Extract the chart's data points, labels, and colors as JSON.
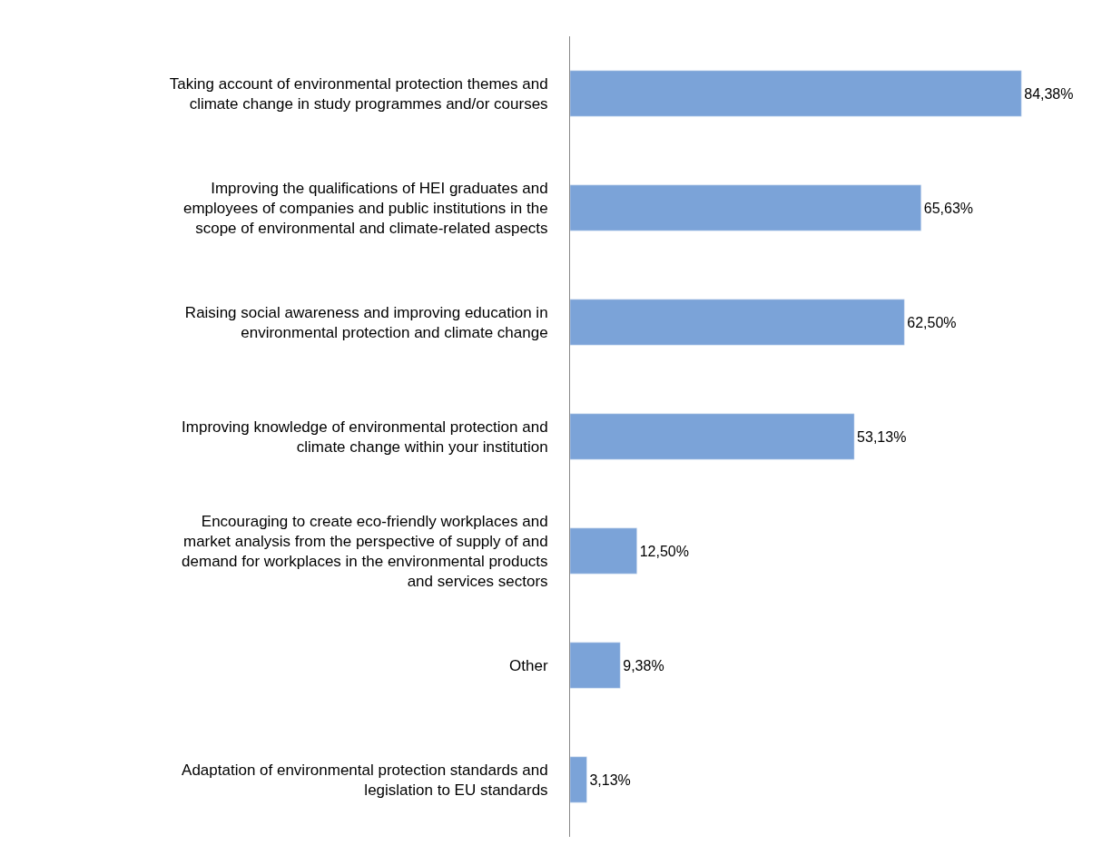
{
  "chart_data": {
    "type": "bar",
    "orientation": "horizontal",
    "categories": [
      "Taking account of environmental protection themes and climate change in study programmes and/or courses",
      "Improving the qualifications of HEI graduates and employees of companies and public institutions in the scope of environmental and climate-related aspects",
      "Raising social awareness and improving education in environmental protection and climate change",
      "Improving knowledge of environmental protection and climate change within your institution",
      "Encouraging to create eco-friendly workplaces and market analysis from the perspective of supply of and demand for workplaces in the environmental products and services sectors",
      "Other",
      "Adaptation of environmental protection standards and legislation to EU standards"
    ],
    "values": [
      84.38,
      65.63,
      62.5,
      53.13,
      12.5,
      9.38,
      3.13
    ],
    "value_labels": [
      "84,38%",
      "65,63%",
      "62,50%",
      "53,13%",
      "12,50%",
      "9,38%",
      "3,13%"
    ],
    "color": "#7ba3d8"
  }
}
